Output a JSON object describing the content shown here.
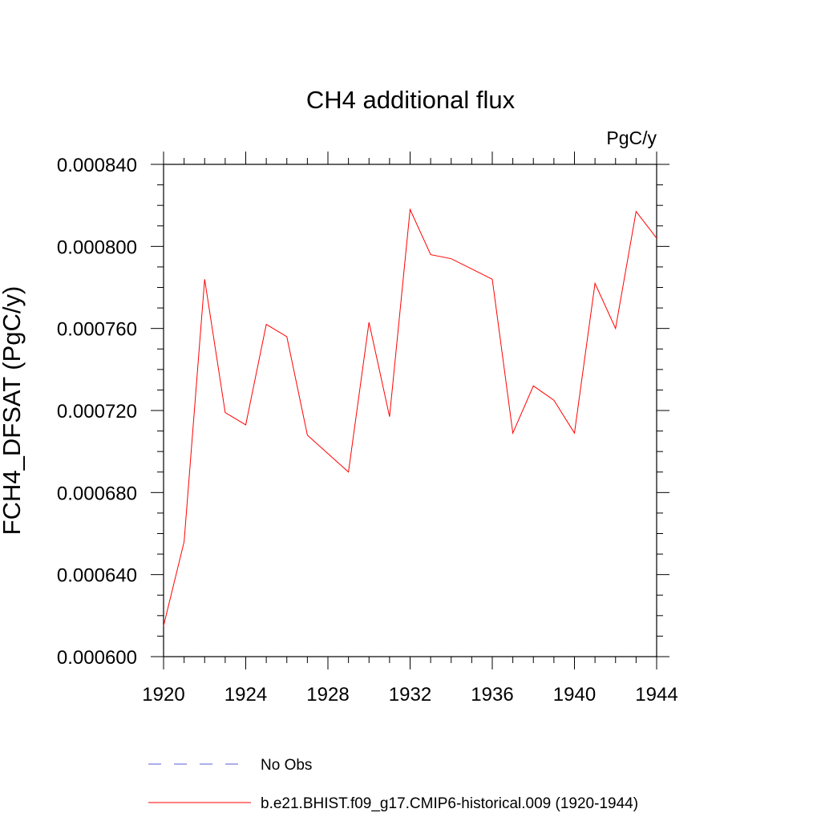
{
  "chart_data": {
    "type": "line",
    "title": "CH4 additional flux",
    "units": "PgC/y",
    "ylabel": "FCH4_DFSAT  (PgC/y)",
    "xlabel": "",
    "xlim": [
      1920,
      1944
    ],
    "ylim": [
      0.0006,
      0.00084
    ],
    "x_ticks": [
      "1920",
      "1924",
      "1928",
      "1932",
      "1936",
      "1940",
      "1944"
    ],
    "y_ticks": [
      "0.000600",
      "0.000640",
      "0.000680",
      "0.000720",
      "0.000760",
      "0.000800",
      "0.000840"
    ],
    "x": [
      1920,
      1921,
      1922,
      1923,
      1924,
      1925,
      1926,
      1927,
      1928,
      1929,
      1930,
      1931,
      1932,
      1933,
      1934,
      1935,
      1936,
      1937,
      1938,
      1939,
      1940,
      1941,
      1942,
      1943,
      1944
    ],
    "series": [
      {
        "name": "b.e21.BHIST.f09_g17.CMIP6-historical.009 (1920-1944)",
        "color": "#ff0000",
        "values": [
          0.000615,
          0.000656,
          0.000784,
          0.000719,
          0.000713,
          0.000762,
          0.000756,
          0.000708,
          0.000699,
          0.00069,
          0.000763,
          0.000717,
          0.000818,
          0.000796,
          0.000794,
          0.000789,
          0.000784,
          0.000709,
          0.000732,
          0.000725,
          0.000709,
          0.000782,
          0.00076,
          0.000817,
          0.000804
        ]
      }
    ],
    "legend": {
      "placement": "bottom",
      "entries": [
        {
          "label": "No Obs",
          "color": "#5b5bd6",
          "style": "dashed"
        },
        {
          "label": "b.e21.BHIST.f09_g17.CMIP6-historical.009 (1920-1944)",
          "color": "#ff0000",
          "style": "solid"
        }
      ]
    },
    "grid": false
  }
}
